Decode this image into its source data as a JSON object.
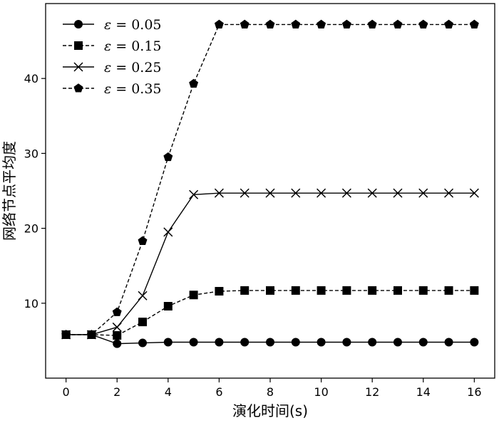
{
  "chart_data": {
    "type": "line",
    "title": "",
    "xlabel": "演化时间(s)",
    "ylabel": "网络节点平均度",
    "xlim": [
      -0.8,
      16.8
    ],
    "ylim": [
      0,
      50
    ],
    "x_ticks": [
      0,
      2,
      4,
      6,
      8,
      10,
      12,
      14,
      16
    ],
    "y_ticks": [
      10,
      20,
      30,
      40
    ],
    "grid": false,
    "legend_position": "top-left",
    "x": [
      0,
      1,
      2,
      3,
      4,
      5,
      6,
      7,
      8,
      9,
      10,
      11,
      12,
      13,
      14,
      15,
      16
    ],
    "series": [
      {
        "name": "ε = 0.05",
        "prefix": "ε",
        "suffix": " = 0.05",
        "marker": "circle",
        "line_style": "solid",
        "values": [
          5.8,
          5.8,
          4.6,
          4.7,
          4.8,
          4.8,
          4.8,
          4.8,
          4.8,
          4.8,
          4.8,
          4.8,
          4.8,
          4.8,
          4.8,
          4.8,
          4.8
        ]
      },
      {
        "name": "ε = 0.15",
        "prefix": "ε",
        "suffix": " = 0.15",
        "marker": "square",
        "line_style": "dashed",
        "values": [
          5.8,
          5.8,
          5.7,
          7.5,
          9.6,
          11.1,
          11.6,
          11.7,
          11.7,
          11.7,
          11.7,
          11.7,
          11.7,
          11.7,
          11.7,
          11.7,
          11.7
        ]
      },
      {
        "name": "ε = 0.25",
        "prefix": "ε",
        "suffix": " = 0.25",
        "marker": "x",
        "line_style": "solid",
        "values": [
          5.8,
          5.8,
          6.8,
          11.0,
          19.5,
          24.5,
          24.7,
          24.7,
          24.7,
          24.7,
          24.7,
          24.7,
          24.7,
          24.7,
          24.7,
          24.7,
          24.7
        ]
      },
      {
        "name": "ε = 0.35",
        "prefix": "ε",
        "suffix": " = 0.35",
        "marker": "pentagon",
        "line_style": "dashed",
        "values": [
          5.8,
          5.8,
          8.8,
          18.3,
          29.5,
          39.3,
          47.2,
          47.2,
          47.2,
          47.2,
          47.2,
          47.2,
          47.2,
          47.2,
          47.2,
          47.2,
          47.2
        ]
      }
    ],
    "colors": {
      "line": "#000000",
      "background": "#ffffff"
    }
  }
}
